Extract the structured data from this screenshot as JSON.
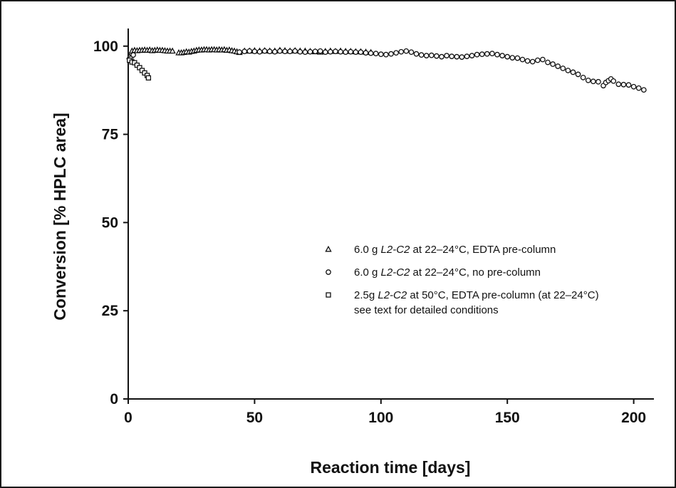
{
  "chart_data": {
    "type": "scatter",
    "xlabel": "Reaction time [days]",
    "ylabel": "Conversion [% HPLC area]",
    "xlim": [
      0,
      208
    ],
    "ylim": [
      0,
      105
    ],
    "x_ticks": [
      0,
      50,
      100,
      150,
      200
    ],
    "x_tick_labels": [
      "0",
      "50",
      "100",
      "150",
      "200"
    ],
    "y_ticks": [
      0,
      25,
      50,
      75,
      100
    ],
    "y_tick_labels": [
      "0",
      "25",
      "50",
      "75",
      "100"
    ],
    "grid": false,
    "legend_position": "center-right",
    "series": [
      {
        "name": "6.0 g L2-C2 at 22–24°C, EDTA pre-column",
        "name_parts": [
          {
            "text": "6.0 g ",
            "italic": false
          },
          {
            "text": "L2-C2",
            "italic": true
          },
          {
            "text": " at 22–24°C, EDTA pre-column",
            "italic": false
          }
        ],
        "marker": "triangle",
        "x": [
          0.5,
          1.5,
          2.5,
          3.5,
          4.5,
          5.5,
          6.5,
          7.5,
          8.5,
          9.5,
          10.5,
          11.5,
          12.5,
          13.5,
          14.5,
          15.5,
          16.5,
          17.5,
          20,
          21,
          22,
          23,
          24,
          25,
          26,
          27,
          28,
          29,
          30,
          31,
          32,
          33,
          34,
          35,
          36,
          37,
          38,
          39,
          40,
          41,
          42,
          43,
          44,
          46,
          48,
          50,
          52,
          54,
          56,
          58,
          60,
          62,
          64,
          66,
          68,
          70,
          72,
          74,
          76,
          78,
          80,
          82,
          84,
          86,
          88,
          90,
          92,
          94,
          96
        ],
        "y": [
          97,
          98.6,
          98.8,
          98.7,
          98.8,
          98.8,
          98.9,
          98.8,
          98.9,
          98.7,
          98.8,
          98.9,
          98.8,
          98.8,
          98.7,
          98.6,
          98.6,
          98.6,
          98.1,
          98.1,
          98.2,
          98.4,
          98.3,
          98.5,
          98.6,
          98.8,
          98.9,
          98.9,
          99,
          99,
          98.9,
          99,
          99,
          98.9,
          99,
          98.9,
          99,
          98.8,
          98.9,
          98.7,
          98.6,
          98.4,
          98.2,
          98.6,
          98.6,
          98.7,
          98.6,
          98.7,
          98.6,
          98.6,
          98.8,
          98.7,
          98.6,
          98.7,
          98.6,
          98.6,
          98.5,
          98.4,
          98.3,
          98.5,
          98.6,
          98.5,
          98.6,
          98.5,
          98.5,
          98.4,
          98.4,
          98.3,
          98.2
        ]
      },
      {
        "name": "6.0 g L2-C2 at 22–24°C, no pre-column",
        "name_parts": [
          {
            "text": "6.0 g ",
            "italic": false
          },
          {
            "text": "L2-C2",
            "italic": true
          },
          {
            "text": " at 22–24°C, no pre-column",
            "italic": false
          }
        ],
        "marker": "circle",
        "x": [
          1,
          2,
          44,
          46,
          48,
          50,
          52,
          54,
          56,
          58,
          60,
          62,
          64,
          66,
          68,
          70,
          72,
          74,
          76,
          78,
          80,
          82,
          84,
          86,
          88,
          90,
          92,
          94,
          96,
          98,
          100,
          102,
          104,
          106,
          108,
          110,
          112,
          114,
          116,
          118,
          120,
          122,
          124,
          126,
          128,
          130,
          132,
          134,
          136,
          138,
          140,
          142,
          144,
          146,
          148,
          150,
          152,
          154,
          156,
          158,
          160,
          162,
          164,
          166,
          168,
          170,
          172,
          174,
          176,
          178,
          180,
          182,
          184,
          186,
          188,
          189,
          190,
          191,
          192,
          194,
          196,
          198,
          200,
          202,
          204
        ],
        "y": [
          96.5,
          97.5,
          98.3,
          98.5,
          98.6,
          98.5,
          98.4,
          98.6,
          98.5,
          98.4,
          98.6,
          98.5,
          98.5,
          98.6,
          98.4,
          98.3,
          98.4,
          98.5,
          98.6,
          98.3,
          98.4,
          98.5,
          98.4,
          98.3,
          98.4,
          98.3,
          98.3,
          98.1,
          98,
          97.9,
          97.7,
          97.6,
          97.8,
          98.1,
          98.4,
          98.6,
          98.3,
          97.8,
          97.5,
          97.3,
          97.4,
          97.2,
          97,
          97.3,
          97.1,
          97,
          96.9,
          97.1,
          97.3,
          97.6,
          97.7,
          97.8,
          97.9,
          97.6,
          97.3,
          97,
          96.7,
          96.6,
          96.2,
          95.8,
          95.6,
          96,
          96.2,
          95.4,
          94.9,
          94.3,
          93.7,
          93.1,
          92.6,
          92,
          91.1,
          90.3,
          90,
          89.9,
          88.8,
          89.7,
          90.2,
          90.7,
          90.1,
          89.2,
          89.1,
          89,
          88.5,
          88.1,
          87.6
        ]
      },
      {
        "name": "2.5g L2-C2 at 50°C, EDTA pre-column (at 22–24°C) see text for detailed conditions",
        "name_parts": [
          {
            "text": "2.5g ",
            "italic": false
          },
          {
            "text": "L2-C2",
            "italic": true
          },
          {
            "text": " at 50°C, EDTA pre-column (at 22–24°C)",
            "italic": false
          }
        ],
        "name_line2": "see text for detailed conditions",
        "marker": "square",
        "x": [
          0.5,
          1.5,
          2.5,
          3.5,
          4.5,
          5.5,
          6.5,
          7.5,
          8
        ],
        "y": [
          96,
          95.5,
          95.3,
          94.6,
          93.9,
          93.1,
          92.4,
          91.7,
          91
        ]
      }
    ]
  }
}
